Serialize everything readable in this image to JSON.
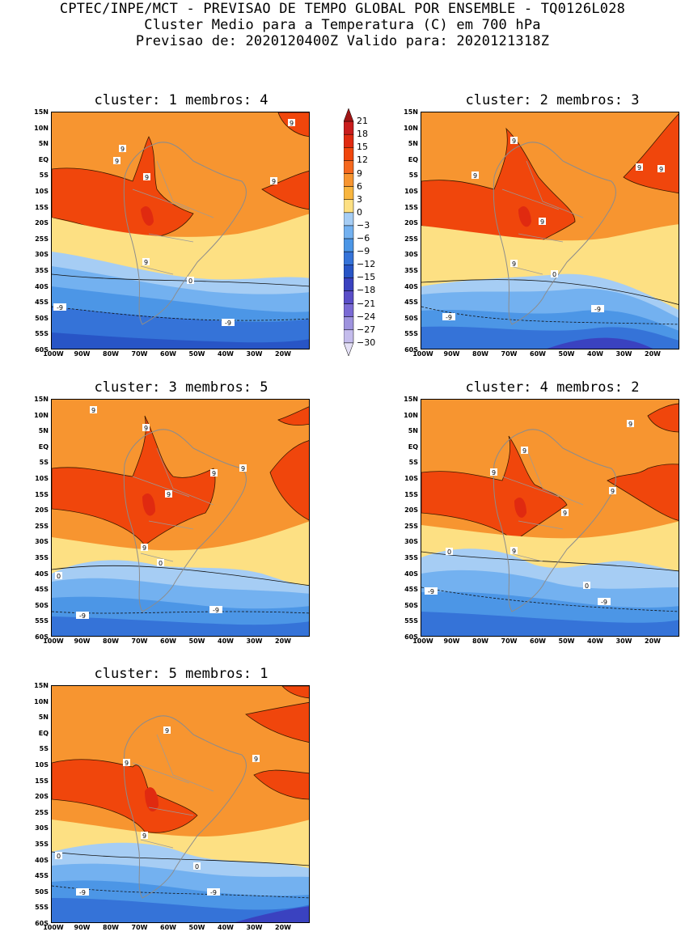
{
  "header": {
    "line1": "CPTEC/INPE/MCT - PREVISAO DE TEMPO GLOBAL POR ENSEMBLE - TQ0126L028",
    "line2": "Cluster Medio para a Temperatura (C) em 700 hPa",
    "line3": "Previsao de: 2020120400Z   Valido para: 2020121318Z"
  },
  "lat_ticks": [
    "15N",
    "10N",
    "5N",
    "EQ",
    "5S",
    "10S",
    "15S",
    "20S",
    "25S",
    "30S",
    "35S",
    "40S",
    "45S",
    "50S",
    "55S",
    "60S"
  ],
  "lon_ticks": [
    "100W",
    "90W",
    "80W",
    "70W",
    "60W",
    "50W",
    "40W",
    "30W",
    "20W"
  ],
  "colorbar": {
    "labels": [
      "21",
      "18",
      "15",
      "12",
      "9",
      "6",
      "3",
      "0",
      "-3",
      "-6",
      "-9",
      "-12",
      "-15",
      "-18",
      "-21",
      "-24",
      "-27",
      "-30"
    ],
    "colors": [
      "#a01515",
      "#c91d1d",
      "#e02a10",
      "#f0460c",
      "#f5681e",
      "#f79530",
      "#f8b53e",
      "#fde083",
      "#a6cdf4",
      "#73b1f0",
      "#4c96e6",
      "#3573d8",
      "#2855c6",
      "#3a42c0",
      "#5a4ec8",
      "#7a6ad4",
      "#9e93de",
      "#c4bcec",
      "#e4e0f6"
    ]
  },
  "panels": [
    {
      "title": "cluster: 1   membros: 4",
      "labels": [
        "9",
        "9",
        "9",
        "9",
        "9",
        "9",
        "0",
        "-9",
        "-9"
      ]
    },
    {
      "title": "cluster: 2   membros: 3",
      "labels": [
        "9",
        "9",
        "9",
        "9",
        "9",
        "9",
        "0",
        "-9",
        "-9"
      ]
    },
    {
      "title": "cluster: 3   membros: 5",
      "labels": [
        "9",
        "9",
        "9",
        "9",
        "9",
        "9",
        "0",
        "0",
        "-9",
        "-9"
      ]
    },
    {
      "title": "cluster: 4   membros: 2",
      "labels": [
        "9",
        "9",
        "9",
        "9",
        "9",
        "9",
        "0",
        "0",
        "-9",
        "-9"
      ]
    },
    {
      "title": "cluster: 5   membros: 1",
      "labels": [
        "9",
        "9",
        "9",
        "9",
        "0",
        "0",
        "-9",
        "-9"
      ]
    }
  ]
}
